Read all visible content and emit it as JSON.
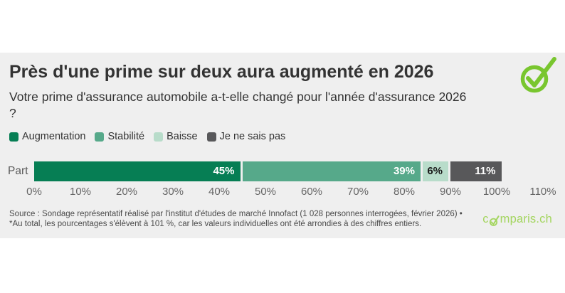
{
  "chart_data": {
    "type": "bar",
    "orientation": "horizontal",
    "stacked": true,
    "title": "Près d'une prime sur deux aura augmenté en 2026",
    "subtitle": "Votre prime d'assurance automobile a-t-elle changé pour l'année d'assurance 2026 ?",
    "categories": [
      "Part"
    ],
    "series": [
      {
        "name": "Augmentation",
        "values": [
          45
        ],
        "color": "#067e54",
        "data_label": "45%",
        "label_color": "#ffffff"
      },
      {
        "name": "Stabilité",
        "values": [
          39
        ],
        "color": "#56a98a",
        "data_label": "39%",
        "label_color": "#ffffff"
      },
      {
        "name": "Baisse",
        "values": [
          6
        ],
        "color": "#b8dcca",
        "data_label": "6%",
        "label_color": "#1a1a1a"
      },
      {
        "name": "Je ne sais pas",
        "values": [
          11
        ],
        "color": "#58585a",
        "data_label": "11%",
        "label_color": "#ffffff"
      }
    ],
    "x_ticks": [
      "0%",
      "10%",
      "20%",
      "30%",
      "40%",
      "50%",
      "60%",
      "70%",
      "80%",
      "90%",
      "100%",
      "110%"
    ],
    "xlim": [
      0,
      110
    ],
    "grid": false,
    "legend_position": "top-left",
    "row_label": "Part"
  },
  "footer": {
    "source_lines": [
      "Source : Sondage représentatif réalisé par l'institut d'études de marché Innofact (1 028 personnes interrogées, février 2026) •",
      "*Au total, les pourcentages s'élèvent à 101 %, car les valeurs individuelles ont été arrondies à des chiffres entiers."
    ],
    "logo_prefix": "c",
    "logo_suffix": "mparis.ch"
  },
  "colors": {
    "card_background": "#efefef",
    "check_icon_green": "#79c62f",
    "logo_green": "#a3d55e",
    "text_dark": "#333333",
    "axis_gray": "#666666"
  }
}
